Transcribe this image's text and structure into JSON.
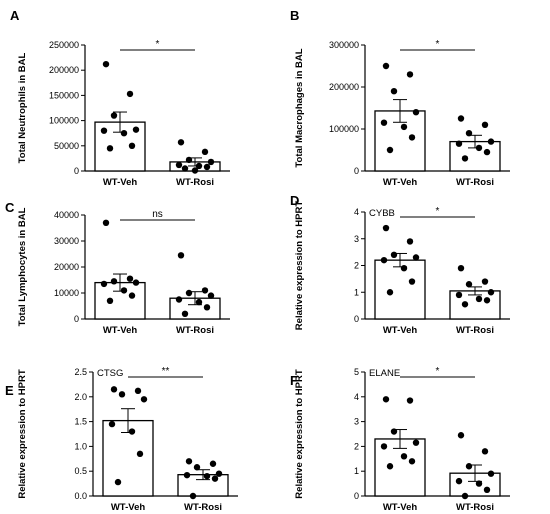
{
  "chart_data": [
    {
      "panel": "A",
      "type": "scatter",
      "ylabel": "Total Neutrophils in BAL",
      "categories": [
        "WT-Veh",
        "WT-Rosi"
      ],
      "ylim": [
        0,
        250000
      ],
      "yticks": [
        "0",
        "50000",
        "100000",
        "150000",
        "200000",
        "250000"
      ],
      "bar_means": [
        97000,
        18000
      ],
      "sem": [
        20000,
        8000
      ],
      "points": [
        [
          212000,
          153000,
          110000,
          82000,
          80000,
          75000,
          50000,
          45000
        ],
        [
          57000,
          38000,
          22000,
          18000,
          12000,
          10000,
          8000,
          5000,
          1000
        ]
      ],
      "significance": "*"
    },
    {
      "panel": "B",
      "type": "scatter",
      "ylabel": "Total Macrophages in BAL",
      "categories": [
        "WT-Veh",
        "WT-Rosi"
      ],
      "ylim": [
        0,
        300000
      ],
      "yticks": [
        "0",
        "100000",
        "200000",
        "300000"
      ],
      "bar_means": [
        143000,
        70000
      ],
      "sem": [
        27000,
        15000
      ],
      "points": [
        [
          250000,
          230000,
          190000,
          140000,
          115000,
          105000,
          80000,
          50000
        ],
        [
          125000,
          110000,
          90000,
          70000,
          65000,
          55000,
          45000,
          30000
        ]
      ],
      "significance": "*"
    },
    {
      "panel": "C",
      "type": "scatter",
      "ylabel": "Total Lymphocytes in BAL",
      "categories": [
        "WT-Veh",
        "WT-Rosi"
      ],
      "ylim": [
        0,
        40000
      ],
      "yticks": [
        "0",
        "10000",
        "20000",
        "30000",
        "40000"
      ],
      "bar_means": [
        14000,
        8000
      ],
      "sem": [
        3300,
        2500
      ],
      "points": [
        [
          37000,
          15500,
          14500,
          14000,
          13500,
          11000,
          9000,
          7000
        ],
        [
          24500,
          11000,
          10000,
          9000,
          7500,
          6500,
          4500,
          2000
        ]
      ],
      "significance": "ns"
    },
    {
      "panel": "D",
      "type": "scatter",
      "gene": "CYBB",
      "ylabel": "Relative expression to HPRT",
      "categories": [
        "WT-Veh",
        "WT-Rosi"
      ],
      "ylim": [
        0,
        4
      ],
      "yticks": [
        "0",
        "1",
        "2",
        "3",
        "4"
      ],
      "bar_means": [
        2.2,
        1.05
      ],
      "sem": [
        0.25,
        0.15
      ],
      "points": [
        [
          3.4,
          2.9,
          2.4,
          2.3,
          2.2,
          1.9,
          1.4,
          1.0
        ],
        [
          1.9,
          1.4,
          1.3,
          1.0,
          0.9,
          0.75,
          0.7,
          0.55
        ]
      ],
      "significance": "*"
    },
    {
      "panel": "E",
      "type": "scatter",
      "gene": "CTSG",
      "ylabel": "Relative expression to HPRT",
      "categories": [
        "WT-Veh",
        "WT-Rosi"
      ],
      "ylim": [
        0,
        2.5
      ],
      "yticks": [
        "0.0",
        "0.5",
        "1.0",
        "1.5",
        "2.0",
        "2.5"
      ],
      "bar_means": [
        1.52,
        0.43
      ],
      "sem": [
        0.24,
        0.1
      ],
      "points": [
        [
          2.15,
          2.12,
          2.05,
          1.95,
          1.45,
          1.3,
          0.85,
          0.28
        ],
        [
          0.7,
          0.65,
          0.58,
          0.45,
          0.42,
          0.4,
          0.35,
          0.0
        ]
      ],
      "significance": "**"
    },
    {
      "panel": "F",
      "type": "scatter",
      "gene": "ELANE",
      "ylabel": "Relative expression to HPRT",
      "categories": [
        "WT-Veh",
        "WT-Rosi"
      ],
      "ylim": [
        0,
        5
      ],
      "yticks": [
        "0",
        "1",
        "2",
        "3",
        "4",
        "5"
      ],
      "bar_means": [
        2.3,
        0.92
      ],
      "sem": [
        0.38,
        0.33
      ],
      "points": [
        [
          3.9,
          3.85,
          2.6,
          2.15,
          2.0,
          1.6,
          1.4,
          1.2
        ],
        [
          2.45,
          1.8,
          1.2,
          0.9,
          0.6,
          0.5,
          0.25,
          0.0
        ]
      ],
      "significance": "*"
    }
  ]
}
